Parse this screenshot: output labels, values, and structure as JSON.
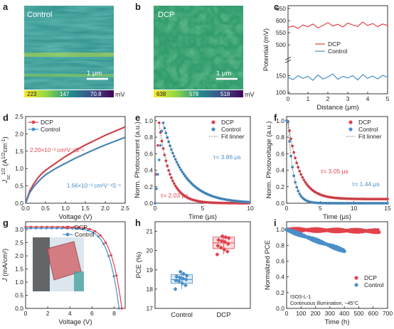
{
  "colors": {
    "dcp": "#e2424b",
    "control": "#4a8fc9",
    "fit": "#8a8a8a"
  },
  "panels": {
    "a": {
      "label": "a",
      "title": "Control",
      "scale": "1 μm",
      "colorbar": [
        "223",
        "147",
        "70.8"
      ],
      "unit": "mV"
    },
    "b": {
      "label": "b",
      "title": "DCP",
      "scale": "1 μm",
      "colorbar": [
        "638",
        "578",
        "518"
      ],
      "unit": "mV"
    },
    "g_photo_label": ""
  },
  "chart_data": [
    {
      "id": "c",
      "label": "c",
      "type": "line",
      "xlabel": "Distance (μm)",
      "ylabel": "Potential (mV)",
      "xlim": [
        0,
        5
      ],
      "xticks": [
        "0",
        "1",
        "2",
        "3",
        "4",
        "5"
      ],
      "yticks": [
        "100",
        "150",
        "500",
        "550",
        "600",
        "650"
      ],
      "ybreak": true,
      "legend": [
        "DCP",
        "Control"
      ],
      "series": [
        {
          "name": "DCP",
          "x": [
            0,
            0.25,
            0.5,
            0.75,
            1,
            1.25,
            1.5,
            1.75,
            2,
            2.25,
            2.5,
            2.75,
            3,
            3.25,
            3.5,
            3.75,
            4,
            4.25,
            4.5,
            4.75,
            5
          ],
          "y": [
            572,
            578,
            568,
            582,
            575,
            586,
            570,
            580,
            592,
            578,
            585,
            574,
            590,
            582,
            576,
            594,
            580,
            588,
            575,
            586,
            580
          ]
        },
        {
          "name": "Control",
          "x": [
            0,
            0.25,
            0.5,
            0.75,
            1,
            1.25,
            1.5,
            1.75,
            2,
            2.25,
            2.5,
            2.75,
            3,
            3.25,
            3.5,
            3.75,
            4,
            4.25,
            4.5,
            4.75,
            5
          ],
          "y": [
            145,
            138,
            150,
            142,
            148,
            136,
            152,
            140,
            146,
            155,
            139,
            148,
            143,
            150,
            137,
            153,
            142,
            149,
            140,
            151,
            145
          ]
        }
      ]
    },
    {
      "id": "d",
      "label": "d",
      "type": "line",
      "xlabel": "Voltage (V)",
      "ylabel": "Jsc1/2 (A1/2cm-1)",
      "xlim": [
        0,
        2.5
      ],
      "ylim": [
        0,
        2.5
      ],
      "xticks": [
        "0.0",
        "0.5",
        "1.0",
        "1.5",
        "2.0",
        "2.5"
      ],
      "yticks": [
        "0.0",
        "0.5",
        "1.0",
        "1.5",
        "2.0",
        "2.5"
      ],
      "legend": [
        "DCP",
        "Control"
      ],
      "annotations": [
        "2.20×10⁻³ cm²V⁻¹S⁻¹",
        "1.66×10⁻³ cm²V⁻¹S⁻¹"
      ],
      "series": [
        {
          "name": "DCP",
          "x": [
            0,
            0.1,
            0.2,
            0.3,
            0.4,
            0.5,
            0.75,
            1,
            1.25,
            1.5,
            1.75,
            2,
            2.25,
            2.5
          ],
          "y": [
            0,
            0.35,
            0.55,
            0.72,
            0.85,
            0.95,
            1.15,
            1.35,
            1.52,
            1.68,
            1.82,
            1.96,
            2.08,
            2.2
          ]
        },
        {
          "name": "Control",
          "x": [
            0,
            0.1,
            0.2,
            0.3,
            0.4,
            0.5,
            0.75,
            1,
            1.25,
            1.5,
            1.75,
            2,
            2.25,
            2.5
          ],
          "y": [
            0,
            0.3,
            0.47,
            0.6,
            0.72,
            0.82,
            1.0,
            1.15,
            1.3,
            1.43,
            1.56,
            1.68,
            1.79,
            1.9
          ]
        }
      ]
    },
    {
      "id": "e",
      "label": "e",
      "type": "scatter",
      "xlabel": "Time (μs)",
      "ylabel": "Norm. Photocurrent (a.u.)",
      "xlim": [
        0,
        10
      ],
      "ylim": [
        0,
        1.05
      ],
      "xticks": [
        "0",
        "5",
        "10"
      ],
      "yticks": [
        "0.0",
        "0.2",
        "0.4",
        "0.6",
        "0.8",
        "1.0"
      ],
      "legend": [
        "DCP",
        "Control",
        "Fit linner"
      ],
      "annotations": [
        "τ= 3.86 μs",
        "τ= 2.03 μs"
      ],
      "series": [
        {
          "name": "DCP",
          "tau": 2.03,
          "x0": 0.4,
          "rise": true
        },
        {
          "name": "Control",
          "tau": 3.86,
          "x0": 0.8,
          "rise": true
        }
      ]
    },
    {
      "id": "f",
      "label": "f",
      "type": "scatter",
      "xlabel": "Time (μs)",
      "ylabel": "Norm. Photovoltage (a.u.)",
      "xlim": [
        0,
        15
      ],
      "ylim": [
        0,
        1.05
      ],
      "xticks": [
        "0",
        "5",
        "10",
        "15"
      ],
      "yticks": [
        "0.0",
        "0.2",
        "0.4",
        "0.6",
        "0.8",
        "1.0"
      ],
      "legend": [
        "DCP",
        "Control",
        "Fit linner"
      ],
      "annotations": [
        "τ= 3.05 μs",
        "τ= 1.44 μs"
      ],
      "series": [
        {
          "name": "DCP",
          "tau": 3.05,
          "x0": 0.2,
          "floor": 0.05
        },
        {
          "name": "Control",
          "tau": 1.44,
          "x0": 0.2,
          "floor": 0.0
        }
      ]
    },
    {
      "id": "g",
      "label": "g",
      "type": "line",
      "xlabel": "Voltage (V)",
      "ylabel": "J (mA/cm²)",
      "xlim": [
        0,
        9
      ],
      "ylim": [
        0,
        3.3
      ],
      "xticks": [
        "0",
        "2",
        "4",
        "6",
        "8"
      ],
      "yticks": [
        "0.0",
        "0.5",
        "1.0",
        "1.5",
        "2.0",
        "2.5",
        "3.0"
      ],
      "legend": [
        "DCP",
        "Control"
      ],
      "series": [
        {
          "name": "DCP",
          "jsc": 3.1,
          "voc": 8.7
        },
        {
          "name": "Control",
          "jsc": 3.05,
          "voc": 8.45
        }
      ]
    },
    {
      "id": "h",
      "label": "h",
      "type": "box",
      "xlabel": "",
      "ylabel": "PCE (%)",
      "ylim": [
        17,
        21.5
      ],
      "yticks": [
        "17",
        "18",
        "19",
        "20",
        "21"
      ],
      "categories": [
        "Control",
        "DCP"
      ],
      "series": [
        {
          "name": "Control",
          "box": [
            18.3,
            18.75
          ],
          "whisker": [
            18.0,
            18.95
          ],
          "median": 18.5,
          "points": [
            18.0,
            18.2,
            18.3,
            18.4,
            18.45,
            18.5,
            18.55,
            18.6,
            18.65,
            18.7,
            18.8,
            18.9
          ]
        },
        {
          "name": "DCP",
          "box": [
            20.1,
            20.7
          ],
          "whisker": [
            19.8,
            20.8
          ],
          "median": 20.4,
          "points": [
            19.8,
            19.95,
            20.05,
            20.15,
            20.25,
            20.35,
            20.45,
            20.5,
            20.55,
            20.65,
            20.7,
            20.75
          ]
        }
      ]
    },
    {
      "id": "i",
      "label": "i",
      "type": "scatter",
      "xlabel": "Time (h)",
      "ylabel": "Normalized PCE",
      "xlim": [
        0,
        700
      ],
      "ylim": [
        0,
        1.1
      ],
      "xticks": [
        "0",
        "100",
        "200",
        "300",
        "400",
        "500",
        "600",
        "700"
      ],
      "yticks": [
        "0.0",
        "0.2",
        "0.4",
        "0.6",
        "0.8",
        "1.0"
      ],
      "legend": [
        "DCP",
        "Control"
      ],
      "annotations": [
        "ISOS-L-1",
        "Continuous illumination, ~45°C"
      ],
      "series": [
        {
          "name": "DCP",
          "xmax": 640,
          "end": 0.98
        },
        {
          "name": "Control",
          "xmax": 400,
          "end": 0.73
        }
      ]
    }
  ]
}
